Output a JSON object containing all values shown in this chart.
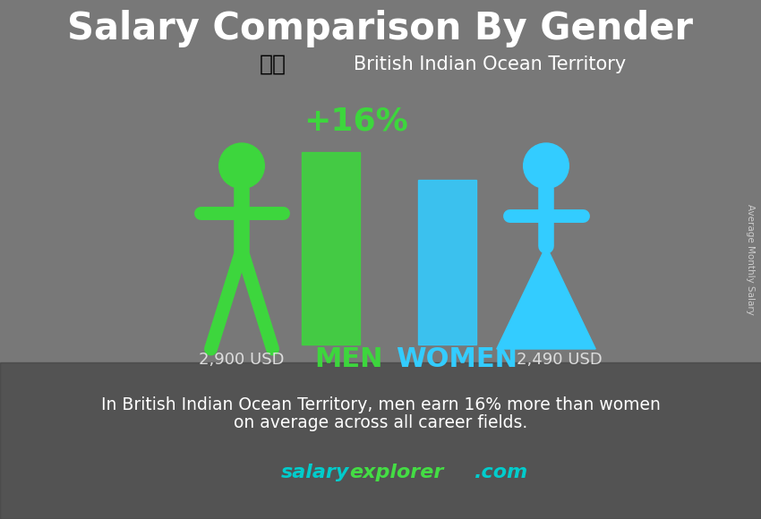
{
  "title": "Salary Comparison By Gender",
  "subtitle": "British Indian Ocean Territory",
  "men_salary": "2,900 USD",
  "women_salary": "2,490 USD",
  "difference_pct": "+16%",
  "men_value": 2900,
  "women_value": 2490,
  "men_color": "#3dd63d",
  "women_color": "#33ccff",
  "bar_men_color": "#3dd63d",
  "bar_women_color": "#33ccff",
  "title_color": "#ffffff",
  "subtitle_color": "#ffffff",
  "men_label": "MEN",
  "women_label": "WOMEN",
  "pct_color": "#3dd63d",
  "body_text_line1": "In British Indian Ocean Territory, men earn 16% more than women",
  "body_text_line2": "on average across all career fields.",
  "footer_salary": "salary",
  "footer_explorer": "explorer",
  "footer_com": ".com",
  "footer_color_teal": "#00cccc",
  "footer_color_green": "#44dd44",
  "right_label": "Average Monthly Salary",
  "bg_color": "#787878",
  "fig_width": 8.5,
  "fig_height": 5.8,
  "dpi": 100,
  "salary_label_color": "#dddddd"
}
